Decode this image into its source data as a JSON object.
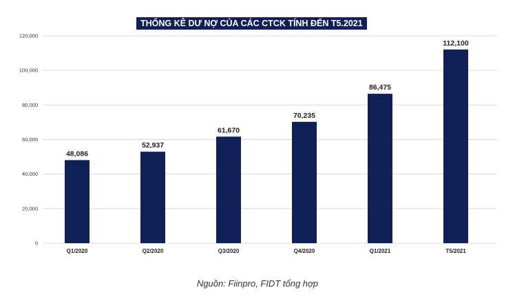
{
  "chart_data": {
    "type": "bar",
    "title": "THỐNG KÊ DƯ NỢ CỦA CÁC CTCK TÍNH ĐẾN T5.2021",
    "categories": [
      "Q1/2020",
      "Q2/2020",
      "Q3/2020",
      "Q4/2020",
      "Q1/2021",
      "T5/2021"
    ],
    "values": [
      48086,
      52937,
      61670,
      70235,
      86475,
      112100
    ],
    "data_labels": [
      "48,086",
      "52,937",
      "61,670",
      "70,235",
      "86,475",
      "112,100"
    ],
    "ylim": [
      0,
      120000
    ],
    "yticks": [
      0,
      20000,
      40000,
      60000,
      80000,
      100000,
      120000
    ],
    "ytick_labels": [
      "0",
      "20,000",
      "40,000",
      "60,000",
      "80,000",
      "100,000",
      "120,000"
    ],
    "grid": true,
    "bar_color": "#0f2157",
    "grid_color": "#d9d9d9"
  },
  "caption": "Nguồn: Fiinpro, FIDT tổng hợp"
}
